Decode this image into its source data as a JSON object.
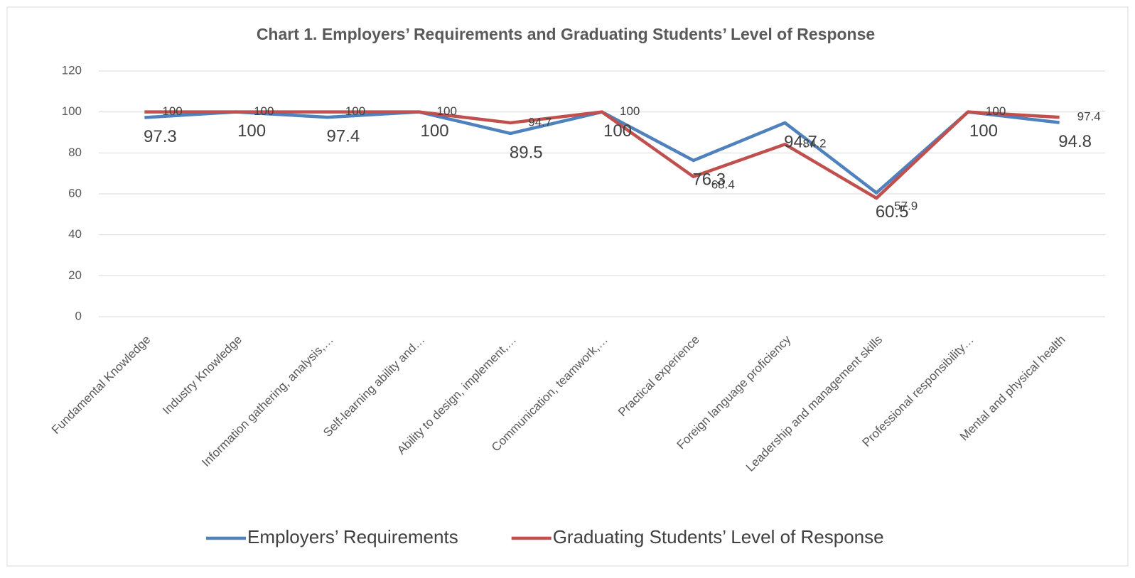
{
  "chart_data": {
    "type": "line",
    "title": "Chart 1.  Employers’ Requirements and Graduating Students’ Level of Response",
    "categories": [
      "Fundamental Knowledge",
      "Industry Knowledge",
      "Information gathering, analysis,…",
      "Self-learning ability and…",
      "Ability to design, implement,…",
      "Communication, teamwork,…",
      "Practical experience",
      "Foreign language proficiency",
      "Leadership and management skills",
      "Professional responsibility…",
      "Mental and physical health"
    ],
    "series": [
      {
        "name": "Employers’ Requirements",
        "color": "#4f81bd",
        "values": [
          97.3,
          100,
          97.4,
          100,
          89.5,
          100,
          76.3,
          94.7,
          60.5,
          100,
          94.8
        ]
      },
      {
        "name": "Graduating Students’ Level of Response",
        "color": "#c0504d",
        "values": [
          100,
          100,
          100,
          100,
          94.7,
          100,
          68.4,
          84.2,
          57.9,
          100,
          97.4
        ]
      }
    ],
    "ylim": [
      0,
      120
    ],
    "yticks": [
      0,
      20,
      40,
      60,
      80,
      100,
      120
    ],
    "grid": true,
    "legend": "bottom"
  }
}
